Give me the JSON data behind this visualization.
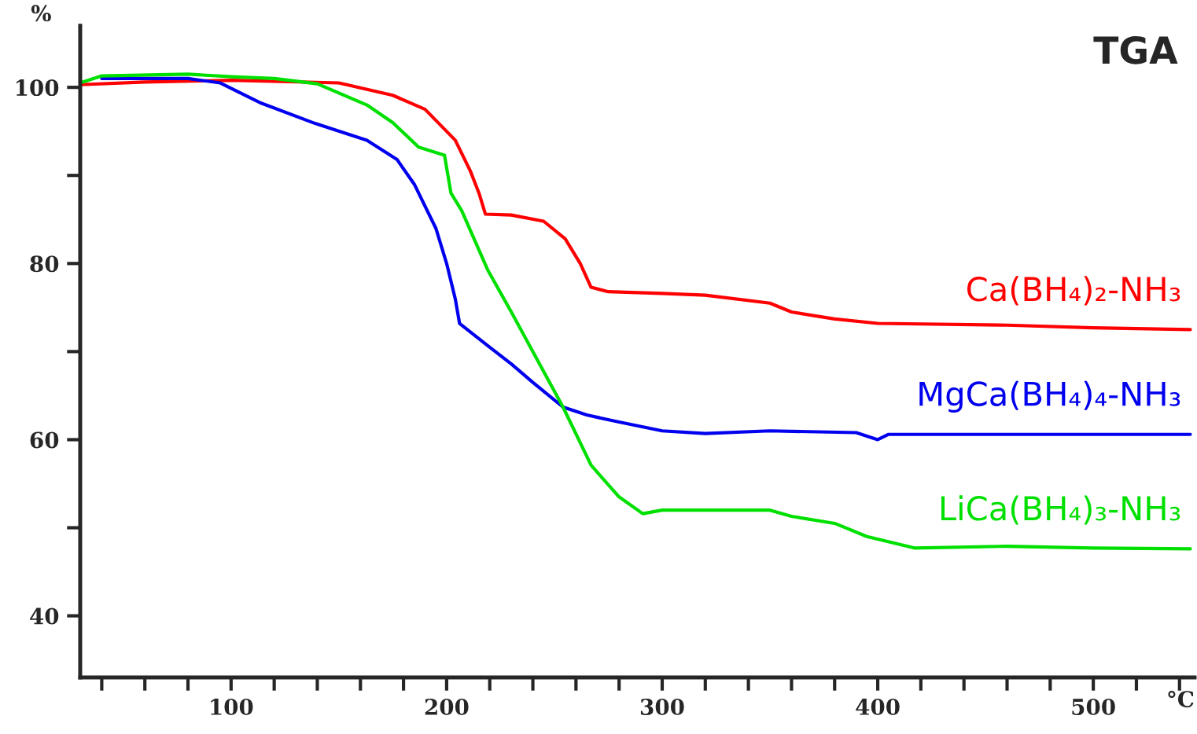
{
  "chart_data": {
    "type": "line",
    "title": "TGA",
    "ylabel": "%",
    "xlabel": "°C",
    "xlim": [
      30,
      547
    ],
    "ylim": [
      33,
      107
    ],
    "xticks": [
      {
        "value": 40,
        "label": null
      },
      {
        "value": 60,
        "label": null
      },
      {
        "value": 80,
        "label": null
      },
      100,
      {
        "value": 120,
        "label": null
      },
      {
        "value": 140,
        "label": null
      },
      {
        "value": 160,
        "label": null
      },
      {
        "value": 180,
        "label": null
      },
      200,
      {
        "value": 220,
        "label": null
      },
      {
        "value": 240,
        "label": null
      },
      {
        "value": 260,
        "label": null
      },
      {
        "value": 280,
        "label": null
      },
      300,
      {
        "value": 320,
        "label": null
      },
      {
        "value": 340,
        "label": null
      },
      {
        "value": 360,
        "label": null
      },
      {
        "value": 380,
        "label": null
      },
      400,
      {
        "value": 420,
        "label": null
      },
      {
        "value": 440,
        "label": null
      },
      {
        "value": 460,
        "label": null
      },
      {
        "value": 480,
        "label": null
      },
      500,
      {
        "value": 520,
        "label": null
      },
      {
        "value": 540,
        "label": null
      }
    ],
    "yticks": [
      40,
      {
        "value": 50,
        "label": null
      },
      60,
      {
        "value": 70,
        "label": null
      },
      80,
      {
        "value": 90,
        "label": null
      },
      100
    ],
    "grid": false,
    "legend": false,
    "marker": "none",
    "line_style": "solid",
    "series": [
      {
        "name": "Ca(BH₄)₂-NH₃",
        "color": "#ff0000",
        "x": [
          30,
          60,
          100,
          150,
          175,
          190,
          204,
          211,
          215,
          218,
          230,
          245,
          255,
          262,
          267,
          275,
          300,
          320,
          350,
          360,
          380,
          400,
          460,
          500,
          545
        ],
        "values": [
          100.3,
          100.6,
          100.8,
          100.5,
          99.1,
          97.5,
          94,
          90.5,
          88,
          85.6,
          85.5,
          84.8,
          82.8,
          80,
          77.3,
          76.8,
          76.6,
          76.4,
          75.5,
          74.5,
          73.7,
          73.2,
          73,
          72.7,
          72.5
        ]
      },
      {
        "name": "MgCa(BH₄)₄-NH₃",
        "color": "#0000ee",
        "x": [
          40,
          80,
          95,
          114,
          139,
          163,
          177,
          185,
          195,
          200,
          204,
          206,
          220,
          230,
          240,
          254,
          265,
          280,
          300,
          320,
          350,
          390,
          400,
          405,
          450,
          545
        ],
        "values": [
          101,
          101,
          100.5,
          98.2,
          95.9,
          94,
          91.8,
          89,
          84,
          80,
          76,
          73.2,
          70.5,
          68.6,
          66.5,
          63.7,
          62.8,
          62,
          61,
          60.7,
          61,
          60.8,
          60,
          60.6,
          60.6,
          60.6
        ]
      },
      {
        "name": "LiCa(BH₄)₃-NH₃",
        "color": "#00e000",
        "x": [
          30,
          40,
          80,
          100,
          120,
          140,
          163,
          175,
          187,
          199,
          202,
          207,
          219,
          230,
          246,
          254,
          267,
          280,
          291,
          300,
          350,
          360,
          380,
          395,
          417,
          460,
          500,
          545
        ],
        "values": [
          100.5,
          101.3,
          101.5,
          101.2,
          101,
          100.4,
          98,
          96,
          93.2,
          92.3,
          88,
          86,
          79.3,
          74.5,
          67.3,
          63.7,
          57.1,
          53.5,
          51.6,
          52,
          52,
          51.3,
          50.5,
          49,
          47.7,
          47.9,
          47.7,
          47.6
        ]
      }
    ]
  }
}
